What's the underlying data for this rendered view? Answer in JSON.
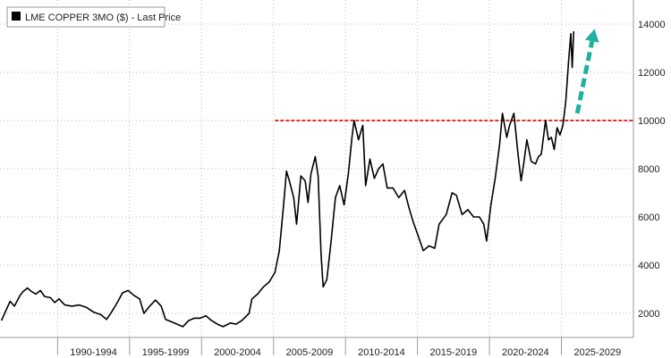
{
  "chart_data": {
    "type": "line",
    "title": "",
    "xlabel": "",
    "ylabel": "",
    "legend": {
      "position": "top-left",
      "entries": [
        {
          "label": "LME COPPER 3MO ($) - Last Price",
          "color": "#000000"
        }
      ]
    },
    "x_categories": [
      "1990-1994",
      "1995-1999",
      "2000-2004",
      "2005-2009",
      "2010-2014",
      "2015-2019",
      "2020-2024",
      "2025-2029"
    ],
    "xlim": [
      1986.5,
      2030.5
    ],
    "ylim": [
      1000,
      15000
    ],
    "yticks": [
      {
        "value": 2000,
        "label": "2000"
      },
      {
        "value": 4000,
        "label": "4000"
      },
      {
        "value": 6000,
        "label": "6000"
      },
      {
        "value": 8000,
        "label": "8000"
      },
      {
        "value": 10000,
        "label": "10000"
      },
      {
        "value": 12000,
        "label": "12000"
      },
      {
        "value": 14000,
        "label": "14000"
      }
    ],
    "grid": {
      "horizontal": true,
      "vertical": true,
      "style": "dotted"
    },
    "series": [
      {
        "color": "#000000",
        "points": [
          [
            1986.6,
            1700
          ],
          [
            1986.9,
            2100
          ],
          [
            1987.2,
            2500
          ],
          [
            1987.5,
            2300
          ],
          [
            1987.9,
            2750
          ],
          [
            1988.1,
            2900
          ],
          [
            1988.4,
            3050
          ],
          [
            1988.7,
            2900
          ],
          [
            1989.0,
            2800
          ],
          [
            1989.3,
            2950
          ],
          [
            1989.6,
            2700
          ],
          [
            1990.0,
            2650
          ],
          [
            1990.3,
            2450
          ],
          [
            1990.6,
            2600
          ],
          [
            1991.0,
            2350
          ],
          [
            1991.5,
            2300
          ],
          [
            1992.0,
            2350
          ],
          [
            1992.5,
            2250
          ],
          [
            1993.0,
            2050
          ],
          [
            1993.5,
            1950
          ],
          [
            1993.9,
            1750
          ],
          [
            1994.3,
            2100
          ],
          [
            1994.7,
            2500
          ],
          [
            1995.0,
            2850
          ],
          [
            1995.4,
            2950
          ],
          [
            1995.8,
            2750
          ],
          [
            1996.2,
            2600
          ],
          [
            1996.5,
            2000
          ],
          [
            1996.9,
            2300
          ],
          [
            1997.3,
            2550
          ],
          [
            1997.7,
            2300
          ],
          [
            1998.0,
            1750
          ],
          [
            1998.4,
            1650
          ],
          [
            1998.8,
            1550
          ],
          [
            1999.2,
            1450
          ],
          [
            1999.6,
            1700
          ],
          [
            2000.0,
            1800
          ],
          [
            2000.4,
            1800
          ],
          [
            2000.8,
            1900
          ],
          [
            2001.2,
            1700
          ],
          [
            2001.6,
            1550
          ],
          [
            2002.0,
            1450
          ],
          [
            2002.5,
            1600
          ],
          [
            2002.9,
            1550
          ],
          [
            2003.3,
            1700
          ],
          [
            2003.8,
            2000
          ],
          [
            2004.0,
            2600
          ],
          [
            2004.4,
            2800
          ],
          [
            2004.8,
            3100
          ],
          [
            2005.2,
            3300
          ],
          [
            2005.6,
            3700
          ],
          [
            2005.9,
            4600
          ],
          [
            2006.2,
            6500
          ],
          [
            2006.4,
            7900
          ],
          [
            2006.6,
            7500
          ],
          [
            2006.9,
            6800
          ],
          [
            2007.1,
            5700
          ],
          [
            2007.4,
            7700
          ],
          [
            2007.7,
            7500
          ],
          [
            2007.9,
            6600
          ],
          [
            2008.1,
            7800
          ],
          [
            2008.4,
            8500
          ],
          [
            2008.6,
            7700
          ],
          [
            2008.8,
            4500
          ],
          [
            2008.95,
            3100
          ],
          [
            2009.2,
            3400
          ],
          [
            2009.5,
            5000
          ],
          [
            2009.8,
            6800
          ],
          [
            2010.1,
            7300
          ],
          [
            2010.4,
            6500
          ],
          [
            2010.7,
            7800
          ],
          [
            2010.95,
            9300
          ],
          [
            2011.1,
            10000
          ],
          [
            2011.4,
            9200
          ],
          [
            2011.7,
            9800
          ],
          [
            2011.9,
            7300
          ],
          [
            2012.2,
            8400
          ],
          [
            2012.5,
            7600
          ],
          [
            2012.8,
            8000
          ],
          [
            2013.1,
            8200
          ],
          [
            2013.4,
            7200
          ],
          [
            2013.8,
            7200
          ],
          [
            2014.2,
            6800
          ],
          [
            2014.6,
            7100
          ],
          [
            2014.9,
            6400
          ],
          [
            2015.2,
            5800
          ],
          [
            2015.5,
            5300
          ],
          [
            2015.9,
            4600
          ],
          [
            2016.3,
            4800
          ],
          [
            2016.7,
            4700
          ],
          [
            2017.0,
            5700
          ],
          [
            2017.5,
            6100
          ],
          [
            2017.9,
            7000
          ],
          [
            2018.2,
            6900
          ],
          [
            2018.6,
            6100
          ],
          [
            2019.0,
            6300
          ],
          [
            2019.4,
            6000
          ],
          [
            2019.8,
            6000
          ],
          [
            2020.1,
            5700
          ],
          [
            2020.3,
            5000
          ],
          [
            2020.6,
            6500
          ],
          [
            2020.9,
            7600
          ],
          [
            2021.2,
            9000
          ],
          [
            2021.4,
            10300
          ],
          [
            2021.7,
            9300
          ],
          [
            2021.9,
            9800
          ],
          [
            2022.2,
            10300
          ],
          [
            2022.5,
            8500
          ],
          [
            2022.7,
            7500
          ],
          [
            2022.9,
            8300
          ],
          [
            2023.1,
            9200
          ],
          [
            2023.4,
            8300
          ],
          [
            2023.7,
            8200
          ],
          [
            2023.9,
            8500
          ],
          [
            2024.1,
            8600
          ],
          [
            2024.4,
            10000
          ],
          [
            2024.6,
            9200
          ],
          [
            2024.8,
            9300
          ],
          [
            2025.0,
            8800
          ],
          [
            2025.2,
            9700
          ],
          [
            2025.4,
            9400
          ],
          [
            2025.6,
            9800
          ],
          [
            2025.8,
            10800
          ],
          [
            2026.0,
            12500
          ],
          [
            2026.15,
            13600
          ],
          [
            2026.25,
            12200
          ],
          [
            2026.35,
            13700
          ]
        ]
      }
    ],
    "annotations": [
      {
        "type": "horizontal-line",
        "y": 10000,
        "x_start": 2005.6,
        "x_end": 2030.5,
        "color": "#e03030",
        "style": "dashed"
      },
      {
        "type": "arrow",
        "from": [
          2026.6,
          10300
        ],
        "to": [
          2027.8,
          13800
        ],
        "color": "#20b0a0",
        "style": "dashed"
      }
    ]
  }
}
